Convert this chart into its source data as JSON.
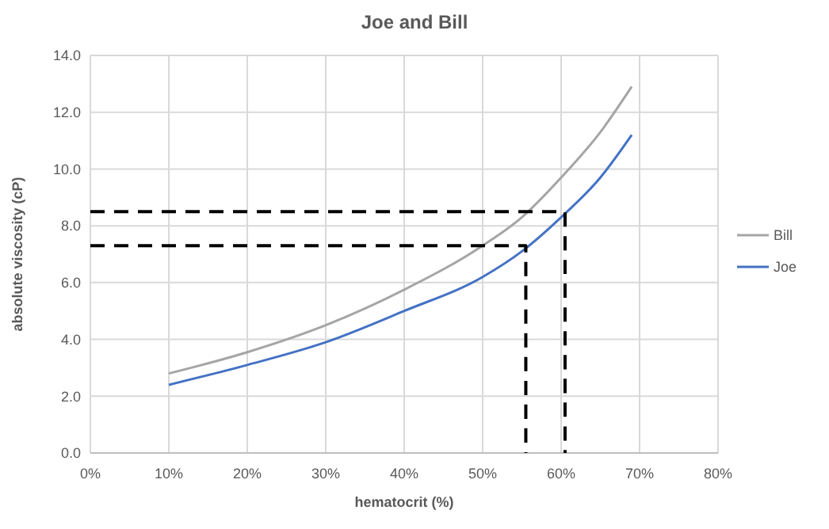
{
  "chart_data": {
    "type": "line",
    "title": "Joe and Bill",
    "xlabel": "hematocrit (%)",
    "ylabel": "absolute viscosity (cP)",
    "xlim": [
      0,
      80
    ],
    "xticks": [
      {
        "value": 0,
        "label": "0%"
      },
      {
        "value": 10,
        "label": "10%"
      },
      {
        "value": 20,
        "label": "20%"
      },
      {
        "value": 30,
        "label": "30%"
      },
      {
        "value": 40,
        "label": "40%"
      },
      {
        "value": 50,
        "label": "50%"
      },
      {
        "value": 60,
        "label": "60%"
      },
      {
        "value": 70,
        "label": "70%"
      },
      {
        "value": 80,
        "label": "80%"
      }
    ],
    "ylim": [
      0,
      14
    ],
    "yticks": [
      {
        "value": 0,
        "label": "0.0"
      },
      {
        "value": 2,
        "label": "2.0"
      },
      {
        "value": 4,
        "label": "4.0"
      },
      {
        "value": 6,
        "label": "6.0"
      },
      {
        "value": 8,
        "label": "8.0"
      },
      {
        "value": 10,
        "label": "10.0"
      },
      {
        "value": 12,
        "label": "12.0"
      },
      {
        "value": 14,
        "label": "14.0"
      }
    ],
    "grid": true,
    "legend": "right",
    "marker": "none",
    "series": [
      {
        "name": "Bill",
        "color": "#a5a5a5",
        "line_style": "solid",
        "x": [
          10,
          20,
          30,
          40,
          50,
          55,
          60,
          65,
          69
        ],
        "values": [
          2.8,
          3.55,
          4.5,
          5.75,
          7.3,
          8.3,
          9.7,
          11.3,
          12.9
        ]
      },
      {
        "name": "Joe",
        "color": "#4472c4",
        "line_style": "solid",
        "x": [
          10,
          20,
          30,
          40,
          50,
          55,
          60,
          65,
          69
        ],
        "values": [
          2.4,
          3.1,
          3.9,
          5.0,
          6.2,
          7.1,
          8.3,
          9.7,
          11.2
        ]
      },
      {
        "color": "#000000",
        "line_style": "dashed",
        "x": [
          0,
          60.5,
          60.5
        ],
        "values": [
          8.5,
          8.5,
          0
        ]
      },
      {
        "color": "#000000",
        "line_style": "dashed",
        "x": [
          0,
          55.5,
          55.5
        ],
        "values": [
          7.3,
          7.3,
          0
        ]
      }
    ]
  }
}
